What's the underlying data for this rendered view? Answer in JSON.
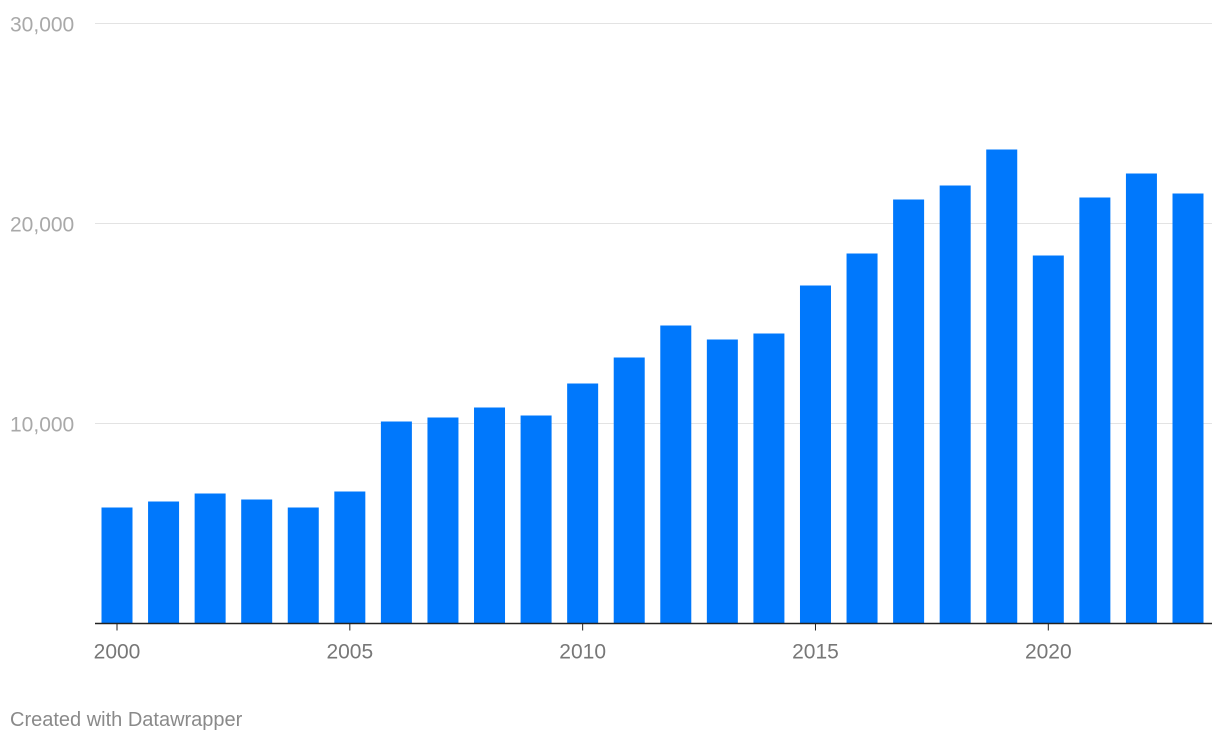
{
  "chart_data": {
    "type": "bar",
    "categories": [
      "2000",
      "2001",
      "2002",
      "2003",
      "2004",
      "2005",
      "2006",
      "2007",
      "2008",
      "2009",
      "2010",
      "2011",
      "2012",
      "2013",
      "2014",
      "2015",
      "2016",
      "2017",
      "2018",
      "2019",
      "2020",
      "2021",
      "2022",
      "2023"
    ],
    "values": [
      5800,
      6100,
      6500,
      6200,
      5800,
      6600,
      10100,
      10300,
      10800,
      10400,
      12000,
      13300,
      14900,
      14200,
      14500,
      16900,
      18500,
      21200,
      21900,
      23700,
      18400,
      21300,
      22500,
      21500
    ],
    "ylim": [
      0,
      30000
    ],
    "yticks": [
      10000,
      20000,
      30000
    ],
    "ytick_labels": [
      "10,000",
      "20,000",
      "30,000"
    ],
    "xtick_labels": [
      "2000",
      "2005",
      "2010",
      "2015",
      "2020"
    ],
    "bar_color": "#0078fc",
    "grid": true,
    "title": "",
    "xlabel": "",
    "ylabel": ""
  },
  "footer": {
    "credit": "Created with Datawrapper"
  }
}
